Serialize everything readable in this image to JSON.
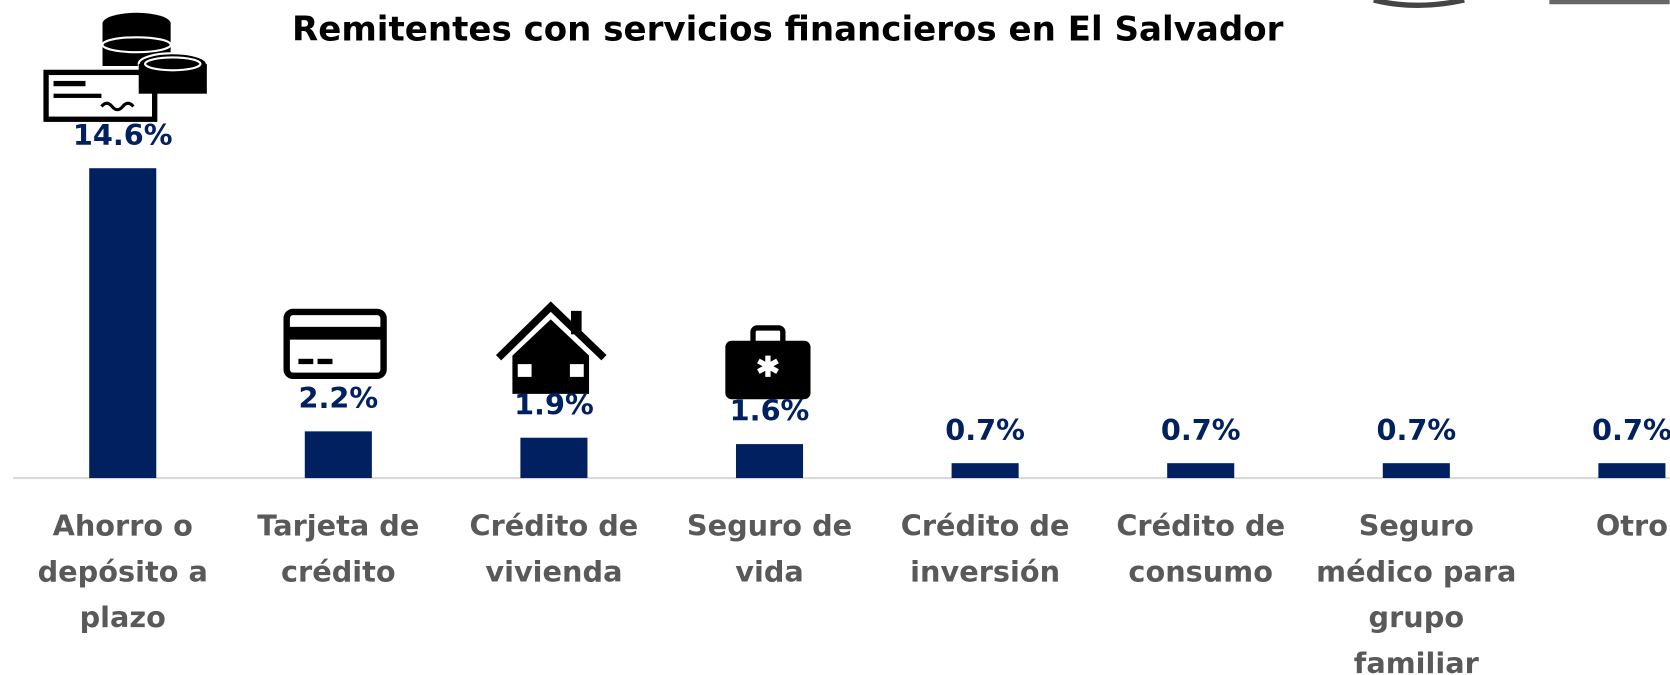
{
  "chart_data": {
    "type": "bar",
    "title": "Remitentes con servicios financieros en El Salvador",
    "categories": [
      "Ahorro o depósito a plazo",
      "Tarjeta de crédito",
      "Crédito de vivienda",
      "Seguro de vida",
      "Crédito de inversión",
      "Crédito de consumo",
      "Seguro médico para grupo familiar",
      "Otro"
    ],
    "values": [
      14.6,
      2.2,
      1.9,
      1.6,
      0.7,
      0.7,
      0.7,
      0.7
    ],
    "value_labels": [
      "14.6%",
      "2.2%",
      "1.9%",
      "1.6%",
      "0.7%",
      "0.7%",
      "0.7%",
      "0.7%"
    ],
    "color": "#002060"
  }
}
